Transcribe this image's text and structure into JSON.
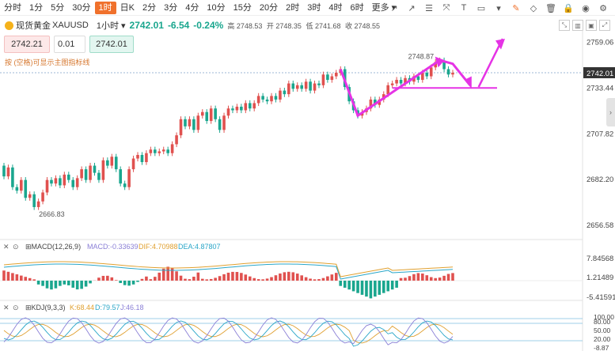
{
  "toolbar": {
    "timeframes": [
      "分时",
      "1分",
      "5分",
      "30分",
      "1时",
      "日K",
      "2分",
      "3分",
      "4分",
      "10分",
      "15分",
      "20分",
      "2时",
      "3时",
      "4时",
      "6时",
      "更多"
    ],
    "active_index": 4,
    "tools": [
      "trendline-icon",
      "ray-icon",
      "fib-icon",
      "channel-icon",
      "text-icon",
      "rectangle-icon",
      "more-icon",
      "highlight-icon",
      "eraser-icon",
      "delete-icon",
      "lock-icon",
      "eye-icon",
      "settings-icon"
    ]
  },
  "quote": {
    "symbol_name": "现货黄金",
    "symbol_code": "XAUUSD",
    "timeframe": "1小时",
    "last": "2742.01",
    "change": "-6.54",
    "change_pct": "-0.24%",
    "high": "高 2748.53",
    "open": "开 2748.35",
    "low": "低 2741.68",
    "close": "收 2748.55"
  },
  "order": {
    "sell": "2742.21",
    "qty": "0.01",
    "buy": "2742.01"
  },
  "hint": "按 (空格)可显示主图指标线",
  "colors": {
    "up": "#e0514f",
    "down": "#1aa68e",
    "accent": "#f0712c",
    "annotation": "#e533e5"
  },
  "chart_data": [
    {
      "type": "candlestick",
      "name": "main",
      "y_ticks": [
        "2759.06",
        "2733.44",
        "2707.82",
        "2682.20",
        "2656.58"
      ],
      "y_tick_values": [
        2759.06,
        2733.44,
        2707.82,
        2682.2,
        2656.58
      ],
      "ylim": [
        2650,
        2765
      ],
      "last_price_label": "2742.01",
      "annotations": [
        "2666.83",
        "2748.87"
      ],
      "closes": [
        2684,
        2689,
        2678,
        2676,
        2682,
        2672,
        2674,
        2666.83,
        2670,
        2675,
        2682,
        2680,
        2683,
        2679,
        2685,
        2682,
        2678,
        2683,
        2688,
        2682,
        2690,
        2686,
        2682,
        2693,
        2690,
        2695,
        2688,
        2680,
        2678,
        2688,
        2694,
        2696,
        2692,
        2697,
        2699,
        2697,
        2698,
        2699,
        2697,
        2702,
        2707,
        2716,
        2712,
        2716,
        2710,
        2718,
        2720,
        2715,
        2722,
        2716,
        2710,
        2718,
        2722,
        2721,
        2723,
        2721,
        2725,
        2722,
        2725,
        2729,
        2727,
        2726,
        2729,
        2727,
        2732,
        2730,
        2736,
        2733,
        2735,
        2733,
        2737,
        2732,
        2736,
        2735,
        2741,
        2738,
        2740,
        2742,
        2744,
        2734,
        2726,
        2721,
        2718,
        2720,
        2722,
        2727,
        2724,
        2727,
        2730,
        2735,
        2736,
        2738,
        2736,
        2739,
        2737,
        2740,
        2738,
        2742,
        2740,
        2745,
        2748,
        2748.87,
        2744,
        2741,
        2742.01
      ]
    },
    {
      "type": "bar",
      "name": "macd",
      "label": "MACD(12,26,9)",
      "macd": "MACD:-0.33639",
      "dif": "DIF:4.70988",
      "dea": "DEA:4.87807",
      "y_ticks": [
        "7.84568",
        "1.21489",
        "-5.41591"
      ]
    },
    {
      "type": "line",
      "name": "kdj",
      "label": "KDJ(9,3,3)",
      "k": "K:68.44",
      "d": "D:79.57",
      "j": "J:46.18",
      "y_ticks": [
        "100.00",
        "80.00",
        "50.00",
        "20.00",
        "-8.87"
      ]
    }
  ]
}
